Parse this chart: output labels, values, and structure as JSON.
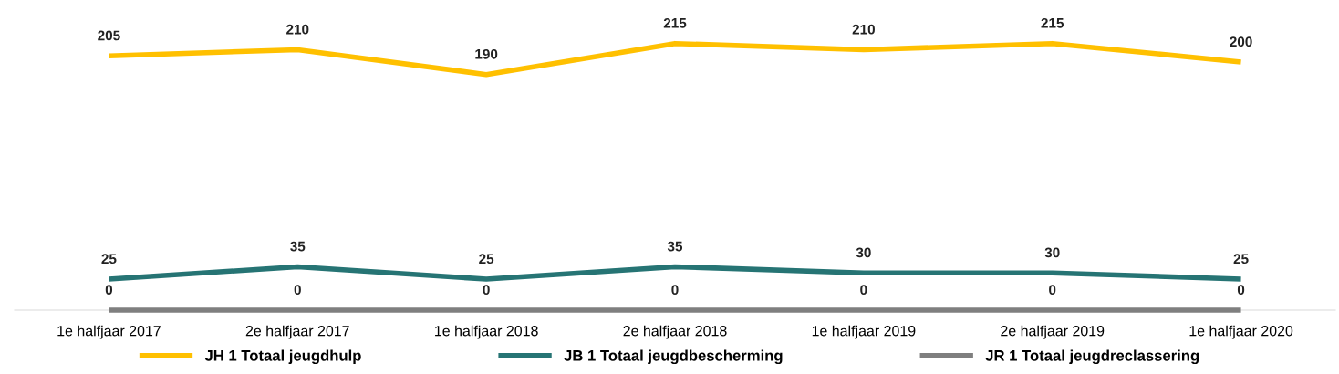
{
  "chart_data": {
    "type": "line",
    "categories": [
      "1e halfjaar 2017",
      "2e halfjaar 2017",
      "1e halfjaar 2018",
      "2e halfjaar 2018",
      "1e halfjaar 2019",
      "2e halfjaar 2019",
      "1e halfjaar 2020"
    ],
    "series": [
      {
        "name": "JH 1 Totaal jeugdhulp",
        "color": "#ffc000",
        "values": [
          205,
          210,
          190,
          215,
          210,
          215,
          200
        ]
      },
      {
        "name": "JB 1 Totaal jeugdbescherming",
        "color": "#267474",
        "values": [
          25,
          35,
          25,
          35,
          30,
          30,
          25
        ]
      },
      {
        "name": "JR 1 Totaal jeugdreclassering",
        "color": "#7f7f7f",
        "values": [
          0,
          0,
          0,
          0,
          0,
          0,
          0
        ]
      }
    ],
    "tick_labels": "x",
    "data_labels": true,
    "grid": false,
    "legend": "bottom",
    "marker": "none",
    "line_style": "solid"
  }
}
